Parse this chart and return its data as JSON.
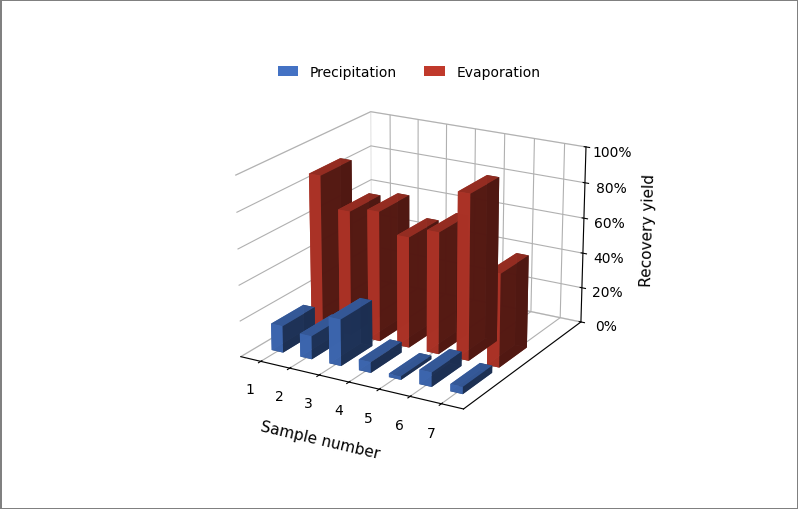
{
  "categories": [
    1,
    2,
    3,
    4,
    5,
    6,
    7
  ],
  "precipitation": [
    0.15,
    0.13,
    0.26,
    0.06,
    0.02,
    0.08,
    0.04
  ],
  "evaporation": [
    0.87,
    0.7,
    0.73,
    0.62,
    0.68,
    0.92,
    0.52
  ],
  "bar_color_precip": "#4472C4",
  "bar_color_evap": "#C0392B",
  "title": "",
  "xlabel": "Sample number",
  "ylabel": "Recovery yield",
  "legend_labels": [
    "Precipitation",
    "Evaporation"
  ],
  "yticks": [
    0.0,
    0.2,
    0.4,
    0.6,
    0.8,
    1.0
  ],
  "ytick_labels": [
    "0%",
    "20%",
    "40%",
    "60%",
    "80%",
    "100%"
  ],
  "background_color": "#ffffff",
  "bar_width": 0.4,
  "bar_depth": 0.4
}
